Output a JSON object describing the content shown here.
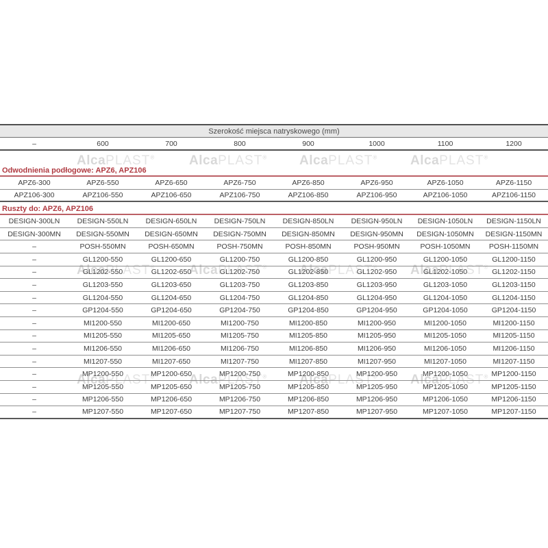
{
  "table": {
    "title": "Szerokość miejsca natryskowego (mm)",
    "columns": [
      "–",
      "600",
      "700",
      "800",
      "900",
      "1000",
      "1100",
      "1200"
    ],
    "sections": [
      {
        "label": "Odwodnienia podłogowe: APZ6, APZ106",
        "rows": [
          [
            "APZ6-300",
            "APZ6-550",
            "APZ6-650",
            "APZ6-750",
            "APZ6-850",
            "APZ6-950",
            "APZ6-1050",
            "APZ6-1150"
          ],
          [
            "APZ106-300",
            "APZ106-550",
            "APZ106-650",
            "APZ106-750",
            "APZ106-850",
            "APZ106-950",
            "APZ106-1050",
            "APZ106-1150"
          ]
        ]
      },
      {
        "label": "Ruszty do: APZ6, APZ106",
        "rows": [
          [
            "DESIGN-300LN",
            "DESIGN-550LN",
            "DESIGN-650LN",
            "DESIGN-750LN",
            "DESIGN-850LN",
            "DESIGN-950LN",
            "DESIGN-1050LN",
            "DESIGN-1150LN"
          ],
          [
            "DESIGN-300MN",
            "DESIGN-550MN",
            "DESIGN-650MN",
            "DESIGN-750MN",
            "DESIGN-850MN",
            "DESIGN-950MN",
            "DESIGN-1050MN",
            "DESIGN-1150MN"
          ],
          [
            "–",
            "POSH-550MN",
            "POSH-650MN",
            "POSH-750MN",
            "POSH-850MN",
            "POSH-950MN",
            "POSH-1050MN",
            "POSH-1150MN"
          ],
          [
            "–",
            "GL1200-550",
            "GL1200-650",
            "GL1200-750",
            "GL1200-850",
            "GL1200-950",
            "GL1200-1050",
            "GL1200-1150"
          ],
          [
            "–",
            "GL1202-550",
            "GL1202-650",
            "GL1202-750",
            "GL1202-850",
            "GL1202-950",
            "GL1202-1050",
            "GL1202-1150"
          ],
          [
            "–",
            "GL1203-550",
            "GL1203-650",
            "GL1203-750",
            "GL1203-850",
            "GL1203-950",
            "GL1203-1050",
            "GL1203-1150"
          ],
          [
            "–",
            "GL1204-550",
            "GL1204-650",
            "GL1204-750",
            "GL1204-850",
            "GL1204-950",
            "GL1204-1050",
            "GL1204-1150"
          ],
          [
            "–",
            "GP1204-550",
            "GP1204-650",
            "GP1204-750",
            "GP1204-850",
            "GP1204-950",
            "GP1204-1050",
            "GP1204-1150"
          ],
          [
            "–",
            "MI1200-550",
            "MI1200-650",
            "MI1200-750",
            "MI1200-850",
            "MI1200-950",
            "MI1200-1050",
            "MI1200-1150"
          ],
          [
            "–",
            "MI1205-550",
            "MI1205-650",
            "MI1205-750",
            "MI1205-850",
            "MI1205-950",
            "MI1205-1050",
            "MI1205-1150"
          ],
          [
            "–",
            "MI1206-550",
            "MI1206-650",
            "MI1206-750",
            "MI1206-850",
            "MI1206-950",
            "MI1206-1050",
            "MI1206-1150"
          ],
          [
            "–",
            "MI1207-550",
            "MI1207-650",
            "MI1207-750",
            "MI1207-850",
            "MI1207-950",
            "MI1207-1050",
            "MI1207-1150"
          ],
          [
            "–",
            "MP1200-550",
            "MP1200-650",
            "MP1200-750",
            "MP1200-850",
            "MP1200-950",
            "MP1200-1050",
            "MP1200-1150"
          ],
          [
            "–",
            "MP1205-550",
            "MP1205-650",
            "MP1205-750",
            "MP1205-850",
            "MP1205-950",
            "MP1205-1050",
            "MP1205-1150"
          ],
          [
            "–",
            "MP1206-550",
            "MP1206-650",
            "MP1206-750",
            "MP1206-850",
            "MP1206-950",
            "MP1206-1050",
            "MP1206-1150"
          ],
          [
            "–",
            "MP1207-550",
            "MP1207-650",
            "MP1207-750",
            "MP1207-850",
            "MP1207-950",
            "MP1207-1050",
            "MP1207-1150"
          ]
        ]
      }
    ]
  },
  "watermark": {
    "bold": "Alca",
    "light": "PLAST",
    "registered": "®"
  },
  "colors": {
    "accent_red": "#b03a41",
    "red_line": "#bb5f65",
    "header_band_bg": "#e8e8e8",
    "line_dark": "#4f4f4f",
    "line_medium": "#6f6f6f",
    "line_light": "#8f8f8f",
    "text": "#3d3d3d"
  }
}
